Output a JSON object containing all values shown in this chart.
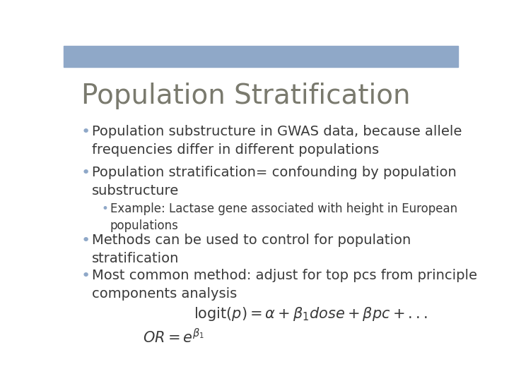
{
  "title": "Population Stratification",
  "title_color": "#7a7a6e",
  "title_fontsize": 28,
  "header_bar_color": "#8fa8c8",
  "header_bar_height": 0.072,
  "body_bg_color": "#ffffff",
  "bullet1": "Population substructure in GWAS data, because allele\nfrequencies differ in different populations",
  "bullet2": "Population stratification= confounding by population\nsubstructure",
  "sub_bullet": "Example: Lactase gene associated with height in European\npopulations",
  "bullet3": "Methods can be used to control for population\nstratification",
  "bullet4": "Most common method: adjust for top pcs from principle\ncomponents analysis",
  "formula1": "$\\mathrm{logit}(p) = \\alpha + \\beta_1 dose + \\beta pc + ...$",
  "formula2": "$OR = e^{\\beta_1}$",
  "text_color": "#3a3a3a",
  "bullet_color": "#8fa8c8",
  "body_fontsize": 14,
  "sub_fontsize": 12
}
